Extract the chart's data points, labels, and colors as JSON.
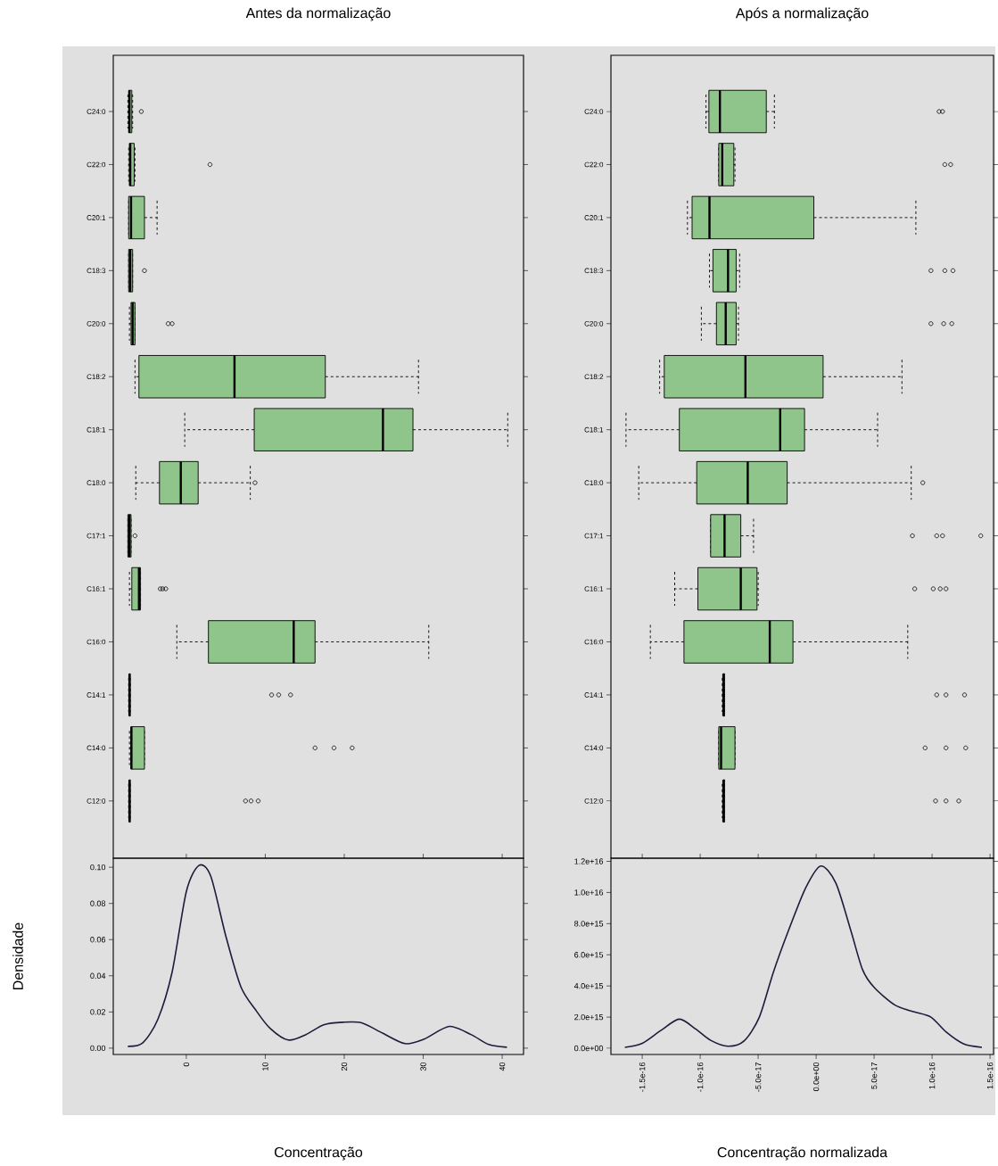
{
  "chart_data": [
    {
      "type": "box",
      "orientation": "horizontal",
      "title": "Antes da normalização",
      "color": "#8fc48b",
      "tick_labels": "y",
      "xlim": [
        -9.25,
        42.7
      ],
      "categories": [
        "C24:0",
        "C22:0",
        "C20:1",
        "C18:3",
        "C20:0",
        "C18:2",
        "C18:1",
        "C18:0",
        "C17:1",
        "C16:1",
        "C16:0",
        "C14:1",
        "C14:0",
        "C12:0"
      ],
      "boxes": [
        {
          "low": -7.4,
          "q1": -7.3,
          "median": -7.2,
          "q3": -6.9,
          "high": -6.8,
          "outliers": [
            -5.7
          ]
        },
        {
          "low": -7.3,
          "q1": -7.2,
          "median": -7.1,
          "q3": -6.6,
          "high": -6.5,
          "outliers": [
            3.0
          ]
        },
        {
          "low": -7.3,
          "q1": -7.3,
          "median": -7.0,
          "q3": -5.3,
          "high": -3.7
        },
        {
          "low": -7.3,
          "q1": -7.3,
          "median": -7.1,
          "q3": -6.8,
          "high": -6.8,
          "outliers": [
            -5.3
          ]
        },
        {
          "low": -7.2,
          "q1": -7.0,
          "median": -6.8,
          "q3": -6.5,
          "high": -6.5,
          "outliers": [
            -2.3,
            -1.8
          ]
        },
        {
          "low": -6.5,
          "q1": -6.0,
          "median": 6.1,
          "q3": 17.6,
          "high": 29.4
        },
        {
          "low": -0.2,
          "q1": 8.6,
          "median": 24.9,
          "q3": 28.7,
          "high": 40.7
        },
        {
          "low": -6.4,
          "q1": -3.4,
          "median": -0.7,
          "q3": 1.5,
          "high": 8.1,
          "outliers": [
            8.7
          ]
        },
        {
          "low": -7.4,
          "q1": -7.4,
          "median": -7.2,
          "q3": -7.0,
          "high": -7.0,
          "outliers": [
            -6.5
          ]
        },
        {
          "low": -7.2,
          "q1": -6.9,
          "median": -6.0,
          "q3": -5.8,
          "high": -5.8,
          "outliers": [
            -3.3,
            -3.0,
            -2.6
          ]
        },
        {
          "low": -1.2,
          "q1": 2.8,
          "median": 13.6,
          "q3": 16.3,
          "high": 30.7
        },
        {
          "low": -7.3,
          "q1": -7.2,
          "median": -7.2,
          "q3": -7.1,
          "high": -7.1,
          "outliers": [
            10.8,
            11.7,
            13.2
          ]
        },
        {
          "low": -7.2,
          "q1": -7.0,
          "median": -6.95,
          "q3": -5.3,
          "high": -5.3,
          "outliers": [
            16.3,
            18.7,
            21.0
          ]
        },
        {
          "low": -7.3,
          "q1": -7.2,
          "median": -7.2,
          "q3": -7.1,
          "high": -7.1,
          "outliers": [
            7.5,
            8.2,
            9.1
          ]
        }
      ]
    },
    {
      "type": "line",
      "xlabel": "Concentração",
      "ylabel": "Densidade",
      "xlim": [
        -9.25,
        42.7
      ],
      "ylim": [
        -0.0035,
        0.105
      ],
      "xticks": [
        0,
        10,
        20,
        30,
        40
      ],
      "yticks": [
        {
          "value": 0,
          "label": "0.00"
        },
        {
          "value": 0.02,
          "label": "0.02"
        },
        {
          "value": 0.04,
          "label": "0.04"
        },
        {
          "value": 0.06,
          "label": "0.06"
        },
        {
          "value": 0.08,
          "label": "0.08"
        },
        {
          "value": 0.1,
          "label": "0.10"
        }
      ],
      "series": [
        {
          "color": "#1c1c3c",
          "x": [
            -7.4,
            -5.5,
            -3.6,
            -1.8,
            0,
            1.6,
            3.1,
            5.0,
            6.9,
            8.8,
            10.6,
            12.9,
            15.1,
            17.4,
            19.8,
            22.2,
            24.9,
            27.7,
            30.1,
            33.3,
            36.1,
            38.3,
            40.6
          ],
          "values": [
            0.001,
            0.003,
            0.016,
            0.042,
            0.0865,
            0.101,
            0.095,
            0.062,
            0.034,
            0.021,
            0.011,
            0.0045,
            0.0074,
            0.0129,
            0.0143,
            0.014,
            0.0082,
            0.0025,
            0.005,
            0.012,
            0.0074,
            0.002,
            0.0005
          ]
        }
      ]
    },
    {
      "type": "box",
      "orientation": "horizontal",
      "title": "Após a normalização",
      "color": "#8fc48b",
      "tick_labels": "y",
      "xlim": [
        -1.77e-16,
        1.53e-16
      ],
      "categories": [
        "C24:0",
        "C22:0",
        "C20:1",
        "C18:3",
        "C20:0",
        "C18:2",
        "C18:1",
        "C18:0",
        "C17:1",
        "C16:1",
        "C16:0",
        "C14:1",
        "C14:0",
        "C12:0"
      ],
      "boxes": [
        {
          "low": -9.5e-17,
          "q1": -9.25e-17,
          "median": -8.3e-17,
          "q3": -4.3e-17,
          "high": -3.6e-17,
          "outliers": [
            1.06e-16,
            1.09e-16
          ]
        },
        {
          "low": -8.4e-17,
          "q1": -8.4e-17,
          "median": -8.1e-17,
          "q3": -7.1e-17,
          "high": -7e-17,
          "outliers": [
            1.11e-16,
            1.16e-16
          ]
        },
        {
          "low": -1.11e-16,
          "q1": -1.07e-16,
          "median": -9.2e-17,
          "q3": -2e-18,
          "high": 8.6e-17
        },
        {
          "low": -9.2e-17,
          "q1": -8.9e-17,
          "median": -7.6e-17,
          "q3": -6.9e-17,
          "high": -6.6e-17,
          "outliers": [
            9.9e-17,
            1.11e-16,
            1.18e-16
          ]
        },
        {
          "low": -9.9e-17,
          "q1": -8.6e-17,
          "median": -7.8e-17,
          "q3": -6.9e-17,
          "high": -6.7e-17,
          "outliers": [
            9.9e-17,
            1.1e-16,
            1.17e-16
          ]
        },
        {
          "low": -1.35e-16,
          "q1": -1.31e-16,
          "median": -6.1e-17,
          "q3": 6e-18,
          "high": 7.4e-17
        },
        {
          "low": -1.64e-16,
          "q1": -1.18e-16,
          "median": -3.1e-17,
          "q3": -1e-17,
          "high": 5.3e-17
        },
        {
          "low": -1.53e-16,
          "q1": -1.03e-16,
          "median": -5.9e-17,
          "q3": -2.5e-17,
          "high": 8.2e-17,
          "outliers": [
            9.2e-17
          ]
        },
        {
          "low": -9.1e-17,
          "q1": -9.1e-17,
          "median": -7.9e-17,
          "q3": -6.5e-17,
          "high": -5.4e-17,
          "outliers": [
            8.3e-17,
            1.04e-16,
            1.09e-16,
            1.42e-16
          ]
        },
        {
          "low": -1.22e-16,
          "q1": -1.02e-16,
          "median": -6.5e-17,
          "q3": -5.1e-17,
          "high": -5e-17,
          "outliers": [
            8.5e-17,
            1.01e-16,
            1.07e-16,
            1.12e-16
          ]
        },
        {
          "low": -1.43e-16,
          "q1": -1.14e-16,
          "median": -4e-17,
          "q3": -2e-17,
          "high": 7.9e-17
        },
        {
          "low": -8.1e-17,
          "q1": -8e-17,
          "median": -8e-17,
          "q3": -7.9e-17,
          "high": -7.9e-17,
          "outliers": [
            1.04e-16,
            1.12e-16,
            1.28e-16
          ]
        },
        {
          "low": -8.4e-17,
          "q1": -8.4e-17,
          "median": -8.2e-17,
          "q3": -7e-17,
          "high": -7e-17,
          "outliers": [
            9.4e-17,
            1.12e-16,
            1.29e-16
          ]
        },
        {
          "low": -8.1e-17,
          "q1": -8e-17,
          "median": -8e-17,
          "q3": -7.9e-17,
          "high": -7.9e-17,
          "outliers": [
            1.03e-16,
            1.12e-16,
            1.23e-16
          ]
        }
      ]
    },
    {
      "type": "line",
      "xlabel": "Concentração normalizada",
      "xlim": [
        -1.77e-16,
        1.53e-16
      ],
      "ylim": [
        -400000000000000.0,
        1.22e+16
      ],
      "xticks": [
        {
          "value": -1.5e-16,
          "label": "-1.5e-16"
        },
        {
          "value": -1e-16,
          "label": "-1.0e-16"
        },
        {
          "value": -5e-17,
          "label": "-5.0e-17"
        },
        {
          "value": 0,
          "label": "0.0e+00"
        },
        {
          "value": 5e-17,
          "label": "5.0e-17"
        },
        {
          "value": 1e-16,
          "label": "1.0e-16"
        },
        {
          "value": 1.5e-16,
          "label": "1.5e-16"
        }
      ],
      "yticks": [
        {
          "value": 0,
          "label": "0.0e+00"
        },
        {
          "value": 2000000000000000.0,
          "label": "2.0e+15"
        },
        {
          "value": 4000000000000000.0,
          "label": "4.0e+15"
        },
        {
          "value": 6000000000000000.0,
          "label": "6.0e+15"
        },
        {
          "value": 8000000000000000.0,
          "label": "8.0e+15"
        },
        {
          "value": 1e+16,
          "label": "1.0e+16"
        },
        {
          "value": 1.2e+16,
          "label": "1.2e+16"
        }
      ],
      "series": [
        {
          "color": "#1c1c3c",
          "x": [
            -1.65e-16,
            -1.5e-16,
            -1.34e-16,
            -1.18e-16,
            -1.04e-16,
            -9.1e-17,
            -7.6e-17,
            -6.2e-17,
            -4.9e-17,
            -3.7e-17,
            -2.4e-17,
            -9e-18,
            4e-18,
            1.7e-17,
            3e-17,
            4e-17,
            5e-17,
            6.8e-17,
            8.4e-17,
            9.9e-17,
            1.12e-16,
            1.27e-16,
            1.43e-16
          ],
          "values": [
            60000000000000.0,
            320000000000000.0,
            1140000000000000.0,
            1870000000000000.0,
            1240000000000000.0,
            510000000000000.0,
            130000000000000.0,
            480000000000000.0,
            2000000000000000.0,
            4860000000000000.0,
            7530000000000000.0,
            1.03e+16,
            1.17e+16,
            1.06e+16,
            7530000000000000.0,
            5050000000000000.0,
            3910000000000000.0,
            2770000000000000.0,
            2350000000000000.0,
            2000000000000000.0,
            1050000000000000.0,
            290000000000000.0,
            60000000000000.0
          ]
        }
      ]
    }
  ]
}
